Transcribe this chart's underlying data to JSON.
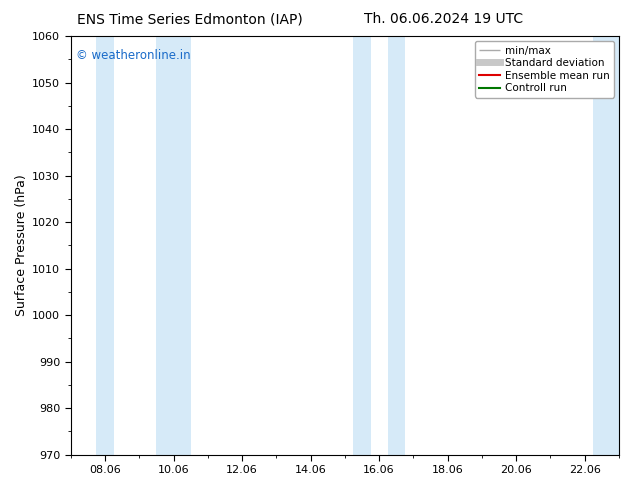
{
  "title_left": "ENS Time Series Edmonton (IAP)",
  "title_right": "Th. 06.06.2024 19 UTC",
  "ylabel": "Surface Pressure (hPa)",
  "ylim": [
    970,
    1060
  ],
  "yticks": [
    970,
    980,
    990,
    1000,
    1010,
    1020,
    1030,
    1040,
    1050,
    1060
  ],
  "xlim_min": 7.0,
  "xlim_max": 23.0,
  "xtick_positions": [
    8,
    10,
    12,
    14,
    16,
    18,
    20,
    22
  ],
  "xtick_labels": [
    "08.06",
    "10.06",
    "12.06",
    "14.06",
    "16.06",
    "18.06",
    "20.06",
    "22.06"
  ],
  "watermark": "© weatheronline.in",
  "watermark_color": "#1a6bc9",
  "bg_color": "#ffffff",
  "plot_bg_color": "#ffffff",
  "shaded_bands": [
    {
      "x_start": 7.75,
      "x_end": 8.25,
      "color": "#d6eaf8"
    },
    {
      "x_start": 9.5,
      "x_end": 10.5,
      "color": "#d6eaf8"
    },
    {
      "x_start": 15.25,
      "x_end": 15.75,
      "color": "#d6eaf8"
    },
    {
      "x_start": 16.25,
      "x_end": 16.75,
      "color": "#d6eaf8"
    },
    {
      "x_start": 22.25,
      "x_end": 23.0,
      "color": "#d6eaf8"
    }
  ],
  "legend_entries": [
    {
      "label": "min/max",
      "color": "#aaaaaa",
      "lw": 1.0
    },
    {
      "label": "Standard deviation",
      "color": "#c8c8c8",
      "lw": 5
    },
    {
      "label": "Ensemble mean run",
      "color": "#dd0000",
      "lw": 1.5
    },
    {
      "label": "Controll run",
      "color": "#007700",
      "lw": 1.5
    }
  ],
  "spine_color": "#000000",
  "tick_color": "#000000",
  "title_fontsize": 10,
  "label_fontsize": 9,
  "tick_fontsize": 8,
  "legend_fontsize": 7.5
}
